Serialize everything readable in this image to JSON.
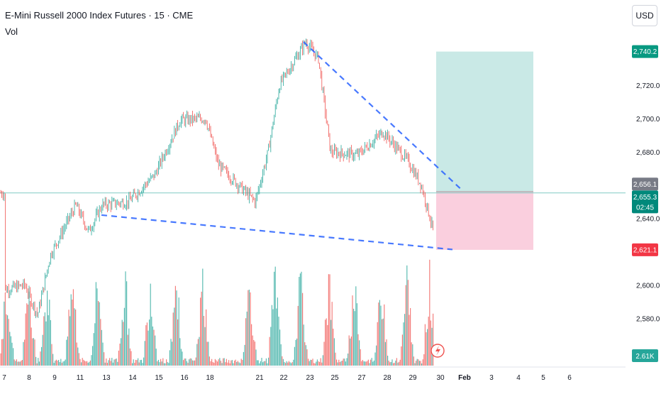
{
  "header": {
    "title": "E-Mini Russell 2000 Index Futures · 15 · CME",
    "volume_label": "Vol"
  },
  "toolbar": {
    "currency": "USD"
  },
  "price_scale": {
    "ticks": [
      "2,720.0",
      "2,700.0",
      "2,680.0",
      "2,640.0",
      "2,600.0",
      "2,580.0"
    ],
    "badges": {
      "target": "2,740.2",
      "last_close": "2,656.1",
      "current": "2,655.3",
      "countdown": "02:45",
      "stop": "2,621.1",
      "volume": "2.61K"
    }
  },
  "time_axis": {
    "labels": [
      "7",
      "8",
      "9",
      "11",
      "13",
      "14",
      "15",
      "16",
      "18",
      "21",
      "22",
      "23",
      "25",
      "27",
      "28",
      "29",
      "30",
      "Feb",
      "3",
      "4",
      "5",
      "6"
    ]
  },
  "colors": {
    "up": "#26a69a",
    "down": "#ef5350",
    "trendline": "#2962ff",
    "profit_zone": "#b2dfdb",
    "loss_zone": "#f8bbd0",
    "price_line": "#80cbc4",
    "target_badge": "#089981",
    "stop_badge": "#f23645",
    "current_badge": "#00897b",
    "close_badge": "#787b86"
  },
  "chart_data": {
    "type": "candlestick",
    "title": "E-Mini Russell 2000 Index Futures · 15 · CME",
    "ylim": [
      2567,
      2758
    ],
    "y_ticks": [
      2580,
      2600,
      2640,
      2680,
      2700,
      2720
    ],
    "x_labels": [
      "7",
      "8",
      "9",
      "11",
      "13",
      "14",
      "15",
      "16",
      "18",
      "21",
      "22",
      "23",
      "25",
      "27",
      "28",
      "29",
      "30",
      "Feb",
      "3",
      "4",
      "5",
      "6"
    ],
    "price_path": [
      {
        "x": "7",
        "y": 2597
      },
      {
        "x": "8",
        "y": 2600
      },
      {
        "x": "8",
        "y": 2582
      },
      {
        "x": "9",
        "y": 2618
      },
      {
        "x": "11",
        "y": 2648
      },
      {
        "x": "11",
        "y": 2632
      },
      {
        "x": "13",
        "y": 2648
      },
      {
        "x": "14",
        "y": 2650
      },
      {
        "x": "15",
        "y": 2666
      },
      {
        "x": "16",
        "y": 2699
      },
      {
        "x": "18",
        "y": 2700
      },
      {
        "x": "18",
        "y": 2672
      },
      {
        "x": "21",
        "y": 2650
      },
      {
        "x": "21",
        "y": 2680
      },
      {
        "x": "22",
        "y": 2720
      },
      {
        "x": "23",
        "y": 2746
      },
      {
        "x": "23",
        "y": 2736
      },
      {
        "x": "25",
        "y": 2680
      },
      {
        "x": "27",
        "y": 2678
      },
      {
        "x": "28",
        "y": 2692
      },
      {
        "x": "29",
        "y": 2674
      },
      {
        "x": "29",
        "y": 2660
      },
      {
        "x": "30",
        "y": 2626
      },
      {
        "x": "30",
        "y": 2655.3
      }
    ],
    "trendlines": [
      {
        "name": "upper",
        "from": {
          "x": "23",
          "y": 2746
        },
        "to": {
          "x": "30",
          "y": 2661
        }
      },
      {
        "name": "lower",
        "from": {
          "x": "13",
          "y": 2642
        },
        "to": {
          "x": "30",
          "y": 2623
        }
      }
    ],
    "position": {
      "target": 2740.2,
      "entry": 2656.1,
      "stop": 2621.1
    },
    "current_price": 2655.3,
    "last_volume": "2.61K"
  }
}
